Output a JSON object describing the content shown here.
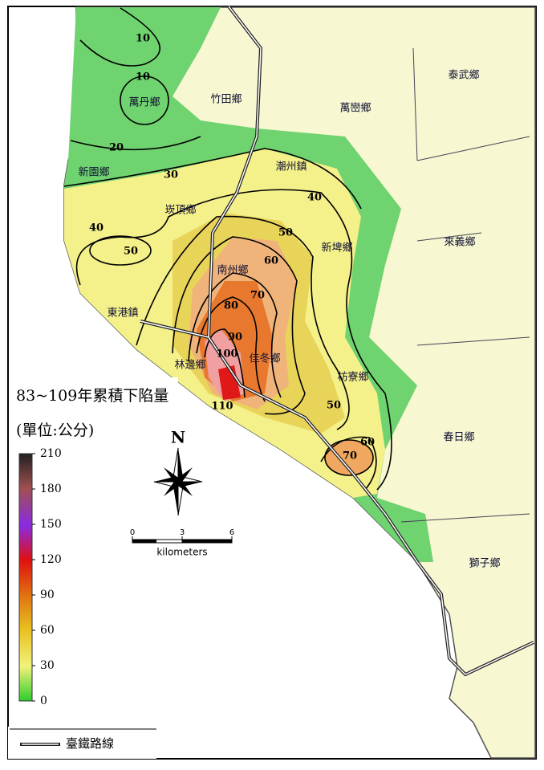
{
  "map": {
    "title": "83~109年累積下陷量",
    "unit": "(單位:公分)",
    "north": "N",
    "townships": [
      "萬丹鄉",
      "竹田鄉",
      "萬巒鄉",
      "泰武鄉",
      "新園鄉",
      "潮州鎮",
      "崁頂鄉",
      "新埤鄉",
      "來義鄉",
      "南州鄉",
      "東港鎮",
      "林邊鄉",
      "佳冬鄉",
      "枋寮鄉",
      "春日鄉",
      "獅子鄉"
    ],
    "contour_labels": [
      10,
      10,
      20,
      30,
      40,
      40,
      50,
      50,
      60,
      70,
      80,
      90,
      100,
      110,
      50,
      60,
      70
    ],
    "colorbar": {
      "lim": [
        0,
        210
      ],
      "ticks": [
        0,
        30,
        60,
        90,
        120,
        150,
        180,
        210
      ]
    },
    "scale_bar": {
      "lim": [
        0,
        6
      ],
      "ticks": [
        0,
        3,
        6
      ],
      "unit": "kilometers"
    },
    "legend": {
      "railway": "臺鐵路線"
    }
  }
}
